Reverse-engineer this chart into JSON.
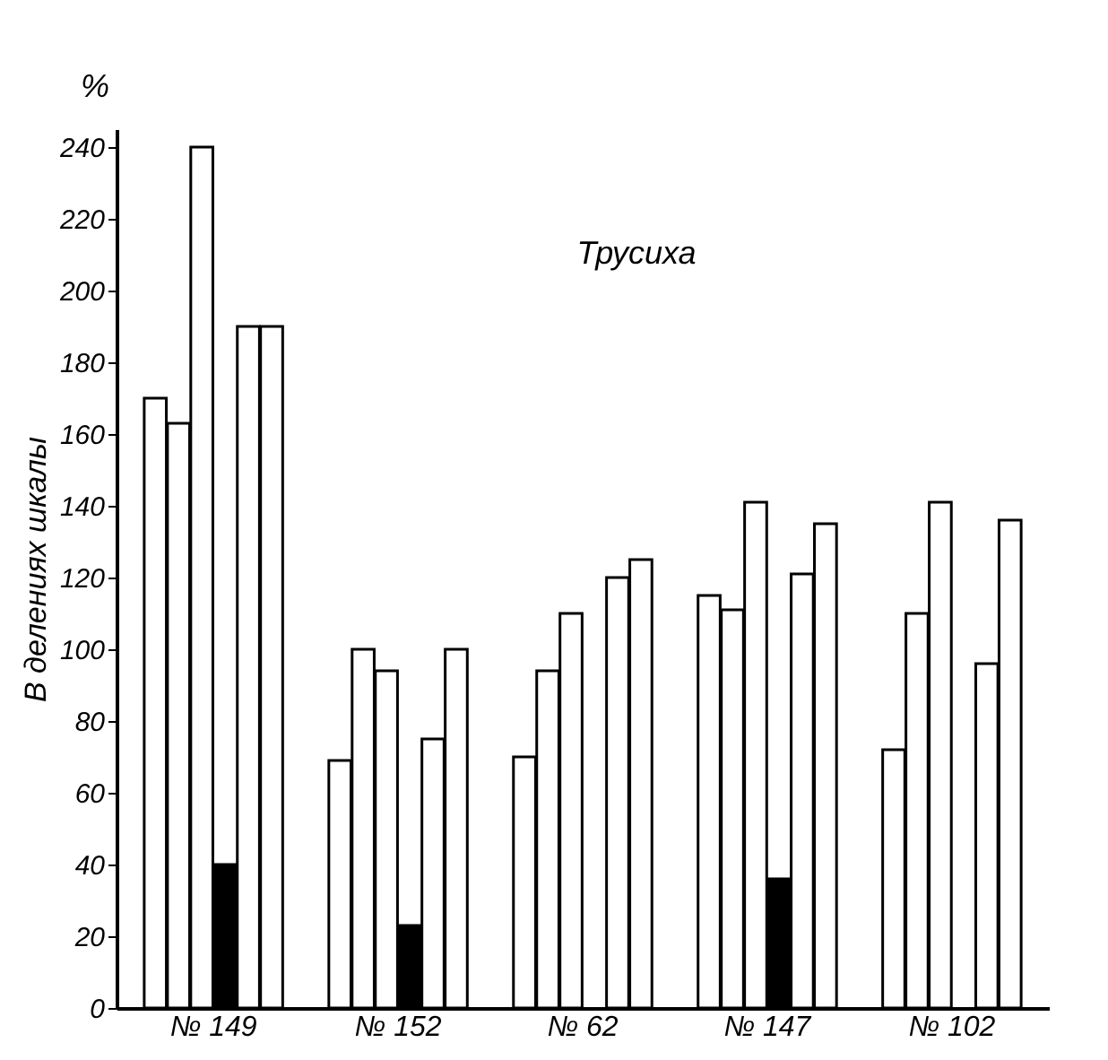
{
  "chart_data": {
    "type": "bar",
    "title": "Трусиха",
    "ylabel": "В делениях шкалы",
    "annotations": [
      "%"
    ],
    "categories": [
      "№ 149",
      "№ 152",
      "№ 62",
      "№ 147",
      "№ 102"
    ],
    "series": [
      {
        "color": "#ffffff",
        "values": [
          170,
          69,
          70,
          115,
          72
        ]
      },
      {
        "color": "#ffffff",
        "values": [
          163,
          100,
          94,
          111,
          110
        ]
      },
      {
        "color": "#ffffff",
        "values": [
          240,
          94,
          110,
          141,
          141
        ]
      },
      {
        "color": "#000000",
        "values": [
          40,
          23,
          null,
          36,
          null
        ]
      },
      {
        "color": "#ffffff",
        "values": [
          190,
          75,
          120,
          121,
          96
        ]
      },
      {
        "color": "#ffffff",
        "values": [
          190,
          100,
          125,
          135,
          136
        ]
      }
    ],
    "ylim": [
      0,
      245
    ],
    "yticks": [
      0,
      20,
      40,
      60,
      80,
      100,
      120,
      140,
      160,
      180,
      200,
      220,
      240
    ],
    "grid": false,
    "legend": false
  }
}
